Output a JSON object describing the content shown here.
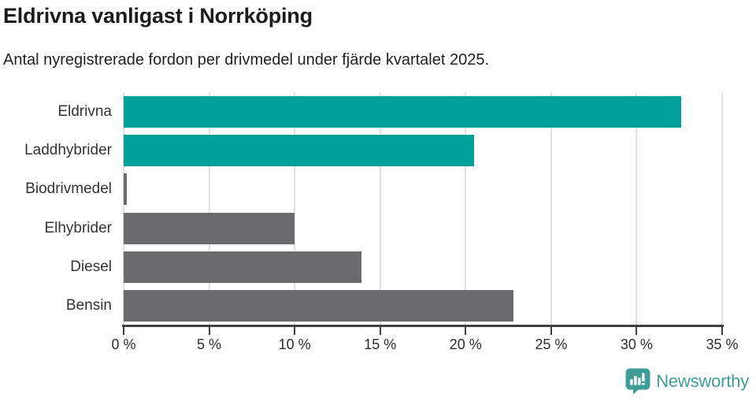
{
  "header": {
    "title": "Eldrivna vanligast i Norrköping",
    "subtitle": "Antal nyregistrerade fordon per drivmedel under fjärde kvartalet 2025."
  },
  "chart_data": {
    "type": "bar",
    "orientation": "horizontal",
    "title": "Eldrivna vanligast i Norrköping",
    "subtitle": "Antal nyregistrerade fordon per drivmedel under fjärde kvartalet 2025.",
    "categories": [
      "Eldrivna",
      "Laddhybrider",
      "Biodrivmedel",
      "Elhybrider",
      "Diesel",
      "Bensin"
    ],
    "values": [
      32.6,
      20.5,
      0.2,
      10.0,
      13.9,
      22.8
    ],
    "unit": "%",
    "bar_colors": [
      "#00A09A",
      "#00A09A",
      "#6A6A6F",
      "#6A6A6F",
      "#6A6A6F",
      "#6A6A6F"
    ],
    "xlim": [
      0,
      35
    ],
    "x_tick_step": 5,
    "x_tick_labels": [
      "0 %",
      "5 %",
      "10 %",
      "15 %",
      "20 %",
      "25 %",
      "30 %",
      "35 %"
    ],
    "grid": "vertical-only",
    "legend": "none",
    "xlabel": "",
    "ylabel": ""
  },
  "footer": {
    "brand": "Newsworthy",
    "brand_color": "#3E9D96",
    "logo_icon": "bar-chart-speech-bubble-icon"
  },
  "colors": {
    "accent_teal": "#00A09A",
    "neutral_gray": "#6A6A6F",
    "grid": "#E1E1E1",
    "axis": "#3F3F3F",
    "title_text": "#1C1C1C",
    "body_text": "#333333"
  }
}
